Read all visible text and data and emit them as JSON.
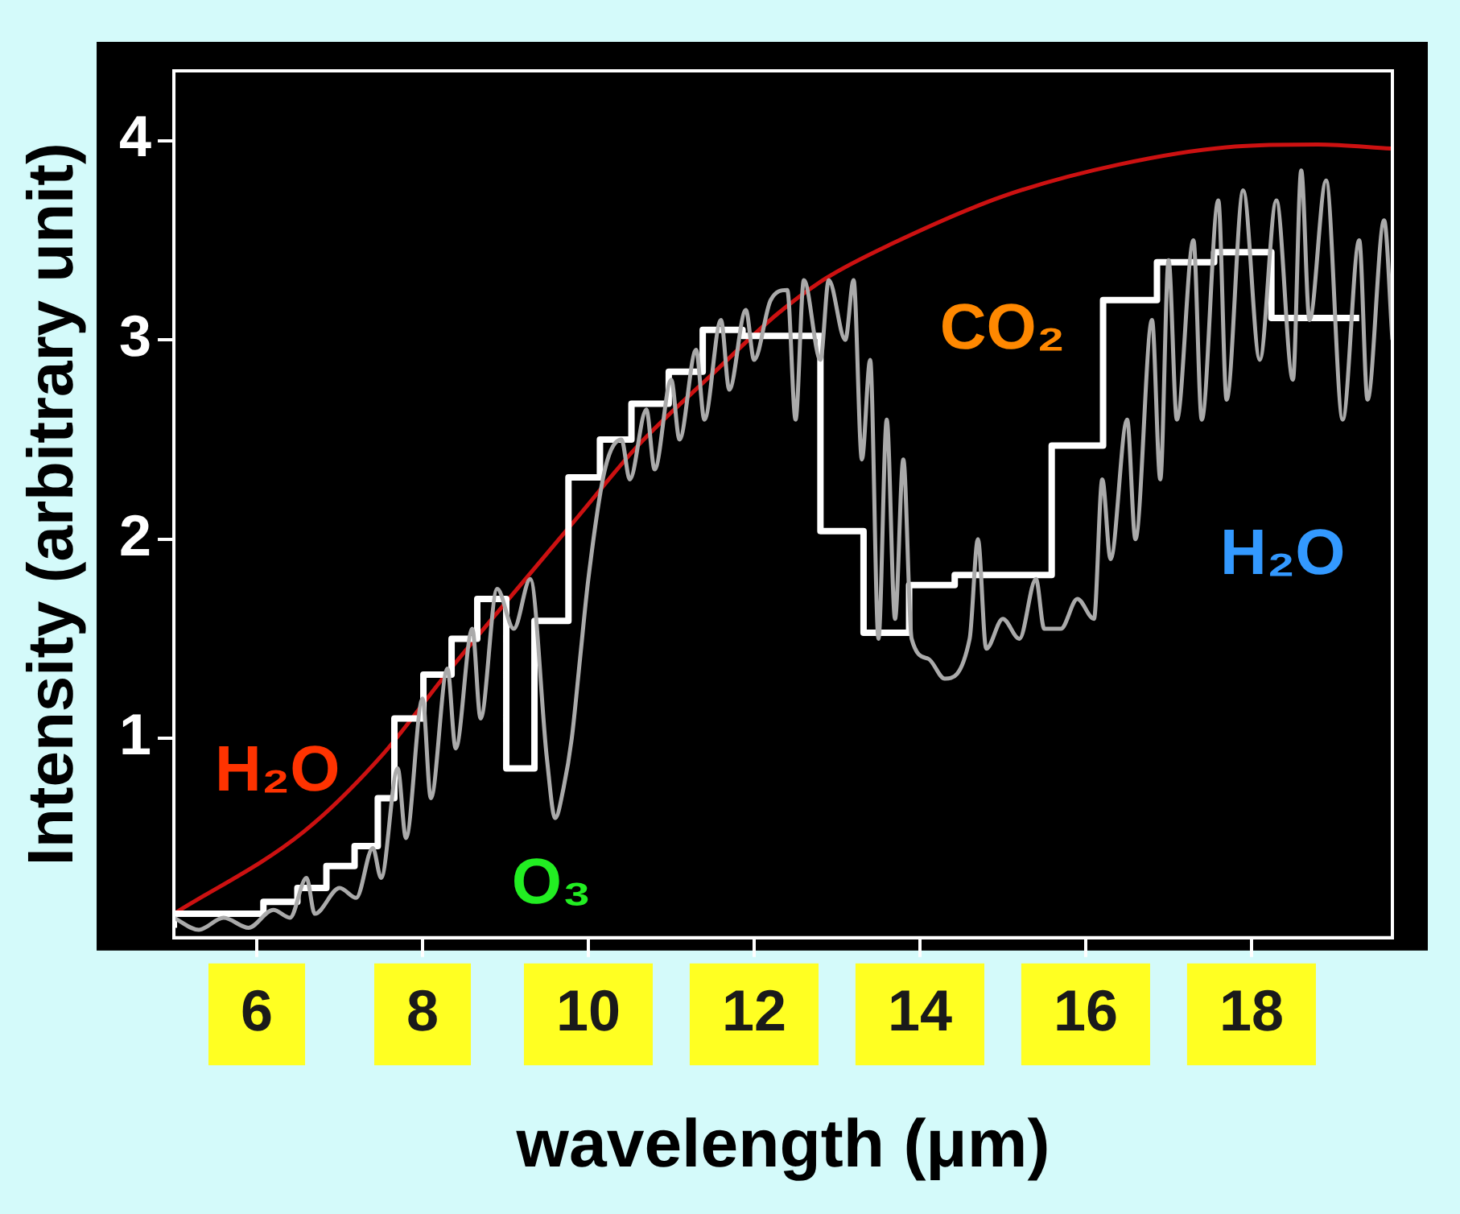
{
  "chart_data": {
    "type": "line",
    "xlabel": "wavelength (μm)",
    "ylabel": "Intensity (arbitrary unit)",
    "xlim": [
      5,
      19.7
    ],
    "ylim": [
      0,
      4.35
    ],
    "xticks": [
      6,
      8,
      10,
      12,
      14,
      16,
      18
    ],
    "yticks": [
      1,
      2,
      3,
      4
    ],
    "grid": false,
    "marker": "none",
    "series": [
      {
        "type": "line",
        "color": "#aaaaaa",
        "x": [
          5.0,
          5.3,
          5.6,
          5.9,
          6.2,
          6.4,
          6.6,
          6.7,
          7.0,
          7.2,
          7.4,
          7.5,
          7.7,
          7.8,
          8.0,
          8.1,
          8.3,
          8.4,
          8.6,
          8.7,
          8.9,
          9.1,
          9.3,
          9.5,
          9.6,
          9.7,
          9.8,
          9.9,
          10.0,
          10.2,
          10.4,
          10.5,
          10.7,
          10.8,
          11.0,
          11.1,
          11.3,
          11.4,
          11.6,
          11.7,
          11.9,
          12.0,
          12.2,
          12.4,
          12.5,
          12.6,
          12.8,
          12.9,
          13.1,
          13.2,
          13.3,
          13.4,
          13.5,
          13.6,
          13.7,
          13.8,
          13.9,
          14.1,
          14.3,
          14.6,
          14.7,
          14.8,
          15.0,
          15.2,
          15.4,
          15.5,
          15.7,
          15.9,
          16.1,
          16.2,
          16.3,
          16.5,
          16.6,
          16.8,
          16.9,
          17.0,
          17.1,
          17.3,
          17.4,
          17.6,
          17.7,
          17.9,
          18.1,
          18.3,
          18.5,
          18.6,
          18.7,
          18.9,
          19.1,
          19.3,
          19.4,
          19.6,
          19.7
        ],
        "values": [
          0.1,
          0.04,
          0.1,
          0.05,
          0.14,
          0.1,
          0.3,
          0.12,
          0.25,
          0.2,
          0.45,
          0.3,
          0.85,
          0.5,
          1.2,
          0.7,
          1.35,
          0.95,
          1.55,
          1.1,
          1.75,
          1.55,
          1.8,
          0.9,
          0.6,
          0.75,
          1.0,
          1.4,
          1.8,
          2.35,
          2.5,
          2.3,
          2.65,
          2.35,
          2.8,
          2.5,
          2.95,
          2.6,
          3.1,
          2.75,
          3.15,
          2.9,
          3.2,
          3.25,
          2.6,
          3.3,
          2.9,
          3.3,
          3.0,
          3.3,
          2.4,
          2.9,
          1.5,
          2.6,
          1.6,
          2.4,
          1.5,
          1.4,
          1.3,
          1.5,
          2.0,
          1.45,
          1.6,
          1.5,
          1.8,
          1.55,
          1.55,
          1.7,
          1.6,
          2.3,
          1.9,
          2.6,
          2.0,
          3.1,
          2.3,
          3.4,
          2.6,
          3.5,
          2.6,
          3.7,
          2.7,
          3.75,
          2.9,
          3.7,
          2.8,
          3.85,
          3.1,
          3.8,
          2.6,
          3.5,
          2.7,
          3.6,
          3.0
        ]
      },
      {
        "type": "step",
        "color": "#ffffff",
        "x": [
          5.0,
          6.08,
          6.49,
          6.84,
          7.18,
          7.46,
          7.66,
          8.01,
          8.35,
          8.66,
          9.01,
          9.35,
          9.76,
          10.14,
          10.52,
          10.97,
          11.38,
          11.86,
          12.8,
          13.32,
          13.87,
          14.42,
          15.59,
          16.21,
          16.86,
          17.55,
          18.24,
          18.99,
          19.3
        ],
        "values": [
          0.05,
          0.12,
          0.18,
          0.25,
          0.36,
          0.46,
          0.7,
          1.1,
          1.32,
          1.5,
          1.7,
          0.85,
          1.59,
          2.31,
          2.5,
          2.68,
          2.84,
          3.05,
          3.02,
          2.04,
          1.53,
          1.77,
          1.82,
          2.47,
          3.2,
          3.39,
          3.44,
          3.11,
          3.11
        ]
      },
      {
        "type": "line",
        "color": "#cc1111",
        "x": [
          5.0,
          6.56,
          7.52,
          8.28,
          9.1,
          9.87,
          10.6,
          11.5,
          12.28,
          12.87,
          13.65,
          15.0,
          16.4,
          17.8,
          18.8,
          19.68
        ],
        "values": [
          0.12,
          0.53,
          0.92,
          1.32,
          1.73,
          2.11,
          2.47,
          2.83,
          3.13,
          3.31,
          3.48,
          3.72,
          3.88,
          3.97,
          3.98,
          3.96
        ]
      }
    ],
    "annotations": [
      "H₂O",
      "O₃",
      "CO₂",
      "H₂O"
    ]
  }
}
